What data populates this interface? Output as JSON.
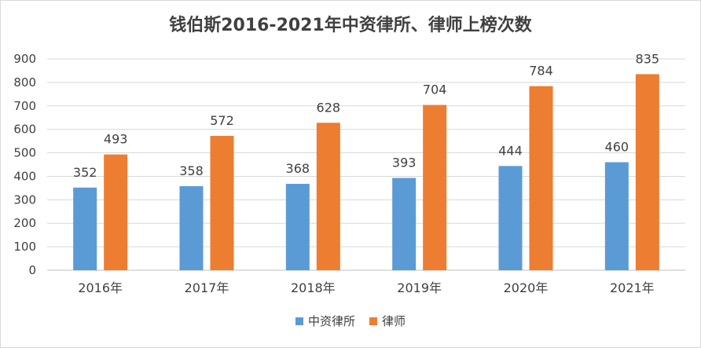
{
  "chart_data": {
    "type": "bar",
    "title": "钱伯斯2016-2021年中资律所、律师上榜次数",
    "categories": [
      "2016年",
      "2017年",
      "2018年",
      "2019年",
      "2020年",
      "2021年"
    ],
    "series": [
      {
        "name": "中资律所",
        "values": [
          352,
          358,
          368,
          393,
          444,
          460
        ],
        "color": "#5b9bd5"
      },
      {
        "name": "律师",
        "values": [
          493,
          572,
          628,
          704,
          784,
          835
        ],
        "color": "#ed7d31"
      }
    ],
    "ylim": [
      0,
      900
    ],
    "yticks": [
      0,
      100,
      200,
      300,
      400,
      500,
      600,
      700,
      800,
      900
    ],
    "grid": true,
    "legend": "bottom",
    "gridColor": "#d9d9d9",
    "axisColor": "#bfbfbf"
  }
}
